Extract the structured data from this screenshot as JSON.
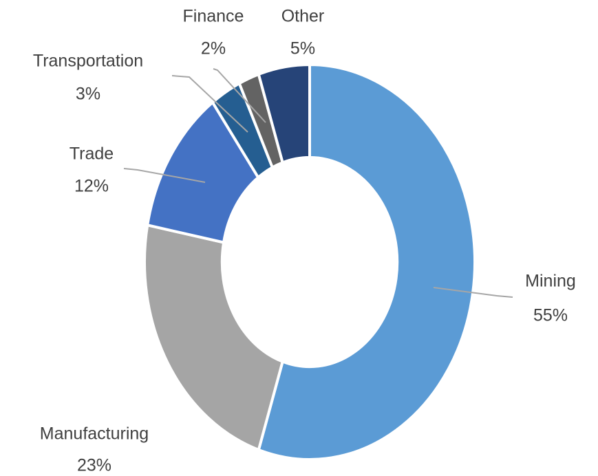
{
  "chart_data": {
    "type": "donut",
    "categories": [
      "Mining",
      "Manufacturing",
      "Trade",
      "Transportation",
      "Finance",
      "Other"
    ],
    "values": [
      55,
      23,
      12,
      3,
      2,
      5
    ],
    "value_labels": [
      "55%",
      "23%",
      "12%",
      "3%",
      "2%",
      "5%"
    ],
    "colors": [
      "#5b9bd5",
      "#a5a5a5",
      "#4472c4",
      "#255e91",
      "#636363",
      "#264478"
    ]
  }
}
